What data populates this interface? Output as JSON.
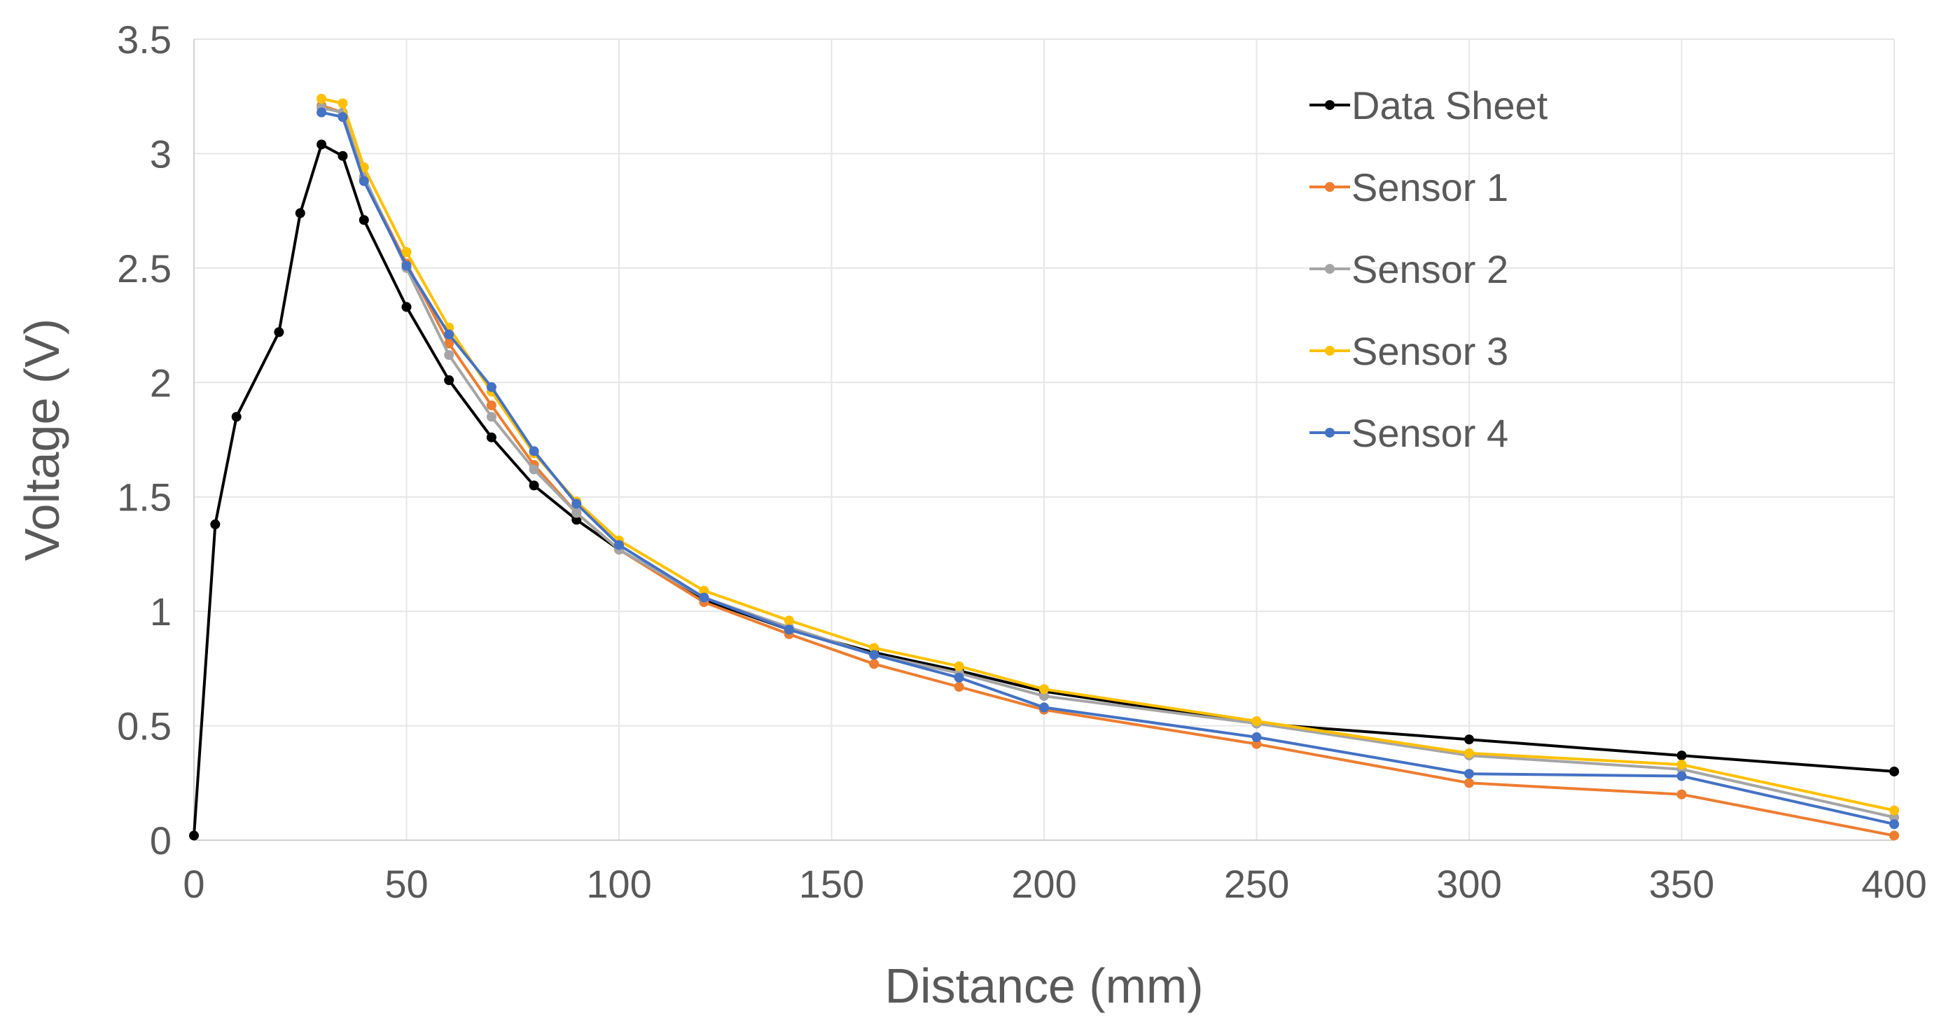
{
  "chart_data": {
    "type": "line",
    "title": "",
    "xlabel": "Distance (mm)",
    "ylabel": "Voltage (V)",
    "xlim": [
      0,
      400
    ],
    "ylim": [
      0,
      3.5
    ],
    "xticks": [
      0,
      50,
      100,
      150,
      200,
      250,
      300,
      350,
      400
    ],
    "yticks": [
      0,
      0.5,
      1,
      1.5,
      2,
      2.5,
      3,
      3.5
    ],
    "xtick_labels": [
      "0",
      "50",
      "100",
      "150",
      "200",
      "250",
      "300",
      "350",
      "400"
    ],
    "ytick_labels": [
      "0",
      "0.5",
      "1",
      "1.5",
      "2",
      "2.5",
      "3",
      "3.5"
    ],
    "grid": true,
    "legend_position": "top-right",
    "series": [
      {
        "name": "Data Sheet",
        "color": "#000000",
        "points": [
          [
            0,
            0.02
          ],
          [
            5,
            1.38
          ],
          [
            10,
            1.85
          ],
          [
            20,
            2.22
          ],
          [
            25,
            2.74
          ],
          [
            30,
            3.04
          ],
          [
            35,
            2.99
          ],
          [
            40,
            2.71
          ],
          [
            50,
            2.33
          ],
          [
            60,
            2.01
          ],
          [
            70,
            1.76
          ],
          [
            80,
            1.55
          ],
          [
            90,
            1.4
          ],
          [
            100,
            1.27
          ],
          [
            120,
            1.05
          ],
          [
            140,
            0.92
          ],
          [
            160,
            0.82
          ],
          [
            180,
            0.74
          ],
          [
            200,
            0.65
          ],
          [
            250,
            0.51
          ],
          [
            300,
            0.44
          ],
          [
            350,
            0.37
          ],
          [
            400,
            0.3
          ]
        ]
      },
      {
        "name": "Sensor 1",
        "color": "#ED7D31",
        "points": [
          [
            30,
            3.21
          ],
          [
            35,
            3.18
          ],
          [
            40,
            2.89
          ],
          [
            50,
            2.52
          ],
          [
            60,
            2.17
          ],
          [
            70,
            1.9
          ],
          [
            80,
            1.64
          ],
          [
            90,
            1.43
          ],
          [
            100,
            1.27
          ],
          [
            120,
            1.04
          ],
          [
            140,
            0.9
          ],
          [
            160,
            0.77
          ],
          [
            180,
            0.67
          ],
          [
            200,
            0.57
          ],
          [
            250,
            0.42
          ],
          [
            300,
            0.25
          ],
          [
            350,
            0.2
          ],
          [
            400,
            0.02
          ]
        ]
      },
      {
        "name": "Sensor 2",
        "color": "#A5A5A5",
        "points": [
          [
            30,
            3.2
          ],
          [
            35,
            3.18
          ],
          [
            40,
            2.9
          ],
          [
            50,
            2.5
          ],
          [
            60,
            2.12
          ],
          [
            70,
            1.85
          ],
          [
            80,
            1.62
          ],
          [
            90,
            1.43
          ],
          [
            100,
            1.27
          ],
          [
            120,
            1.06
          ],
          [
            140,
            0.93
          ],
          [
            160,
            0.81
          ],
          [
            180,
            0.73
          ],
          [
            200,
            0.63
          ],
          [
            250,
            0.51
          ],
          [
            300,
            0.37
          ],
          [
            350,
            0.31
          ],
          [
            400,
            0.1
          ]
        ]
      },
      {
        "name": "Sensor 3",
        "color": "#FFC000",
        "points": [
          [
            30,
            3.24
          ],
          [
            35,
            3.22
          ],
          [
            40,
            2.94
          ],
          [
            50,
            2.57
          ],
          [
            60,
            2.24
          ],
          [
            70,
            1.96
          ],
          [
            80,
            1.69
          ],
          [
            90,
            1.48
          ],
          [
            100,
            1.31
          ],
          [
            120,
            1.09
          ],
          [
            140,
            0.96
          ],
          [
            160,
            0.84
          ],
          [
            180,
            0.76
          ],
          [
            200,
            0.66
          ],
          [
            250,
            0.52
          ],
          [
            300,
            0.38
          ],
          [
            350,
            0.33
          ],
          [
            400,
            0.13
          ]
        ]
      },
      {
        "name": "Sensor 4",
        "color": "#4472C4",
        "points": [
          [
            30,
            3.18
          ],
          [
            35,
            3.16
          ],
          [
            40,
            2.88
          ],
          [
            50,
            2.51
          ],
          [
            60,
            2.21
          ],
          [
            70,
            1.98
          ],
          [
            80,
            1.7
          ],
          [
            90,
            1.47
          ],
          [
            100,
            1.29
          ],
          [
            120,
            1.06
          ],
          [
            140,
            0.92
          ],
          [
            160,
            0.81
          ],
          [
            180,
            0.71
          ],
          [
            200,
            0.58
          ],
          [
            250,
            0.45
          ],
          [
            300,
            0.29
          ],
          [
            350,
            0.28
          ],
          [
            400,
            0.07
          ]
        ]
      }
    ]
  }
}
